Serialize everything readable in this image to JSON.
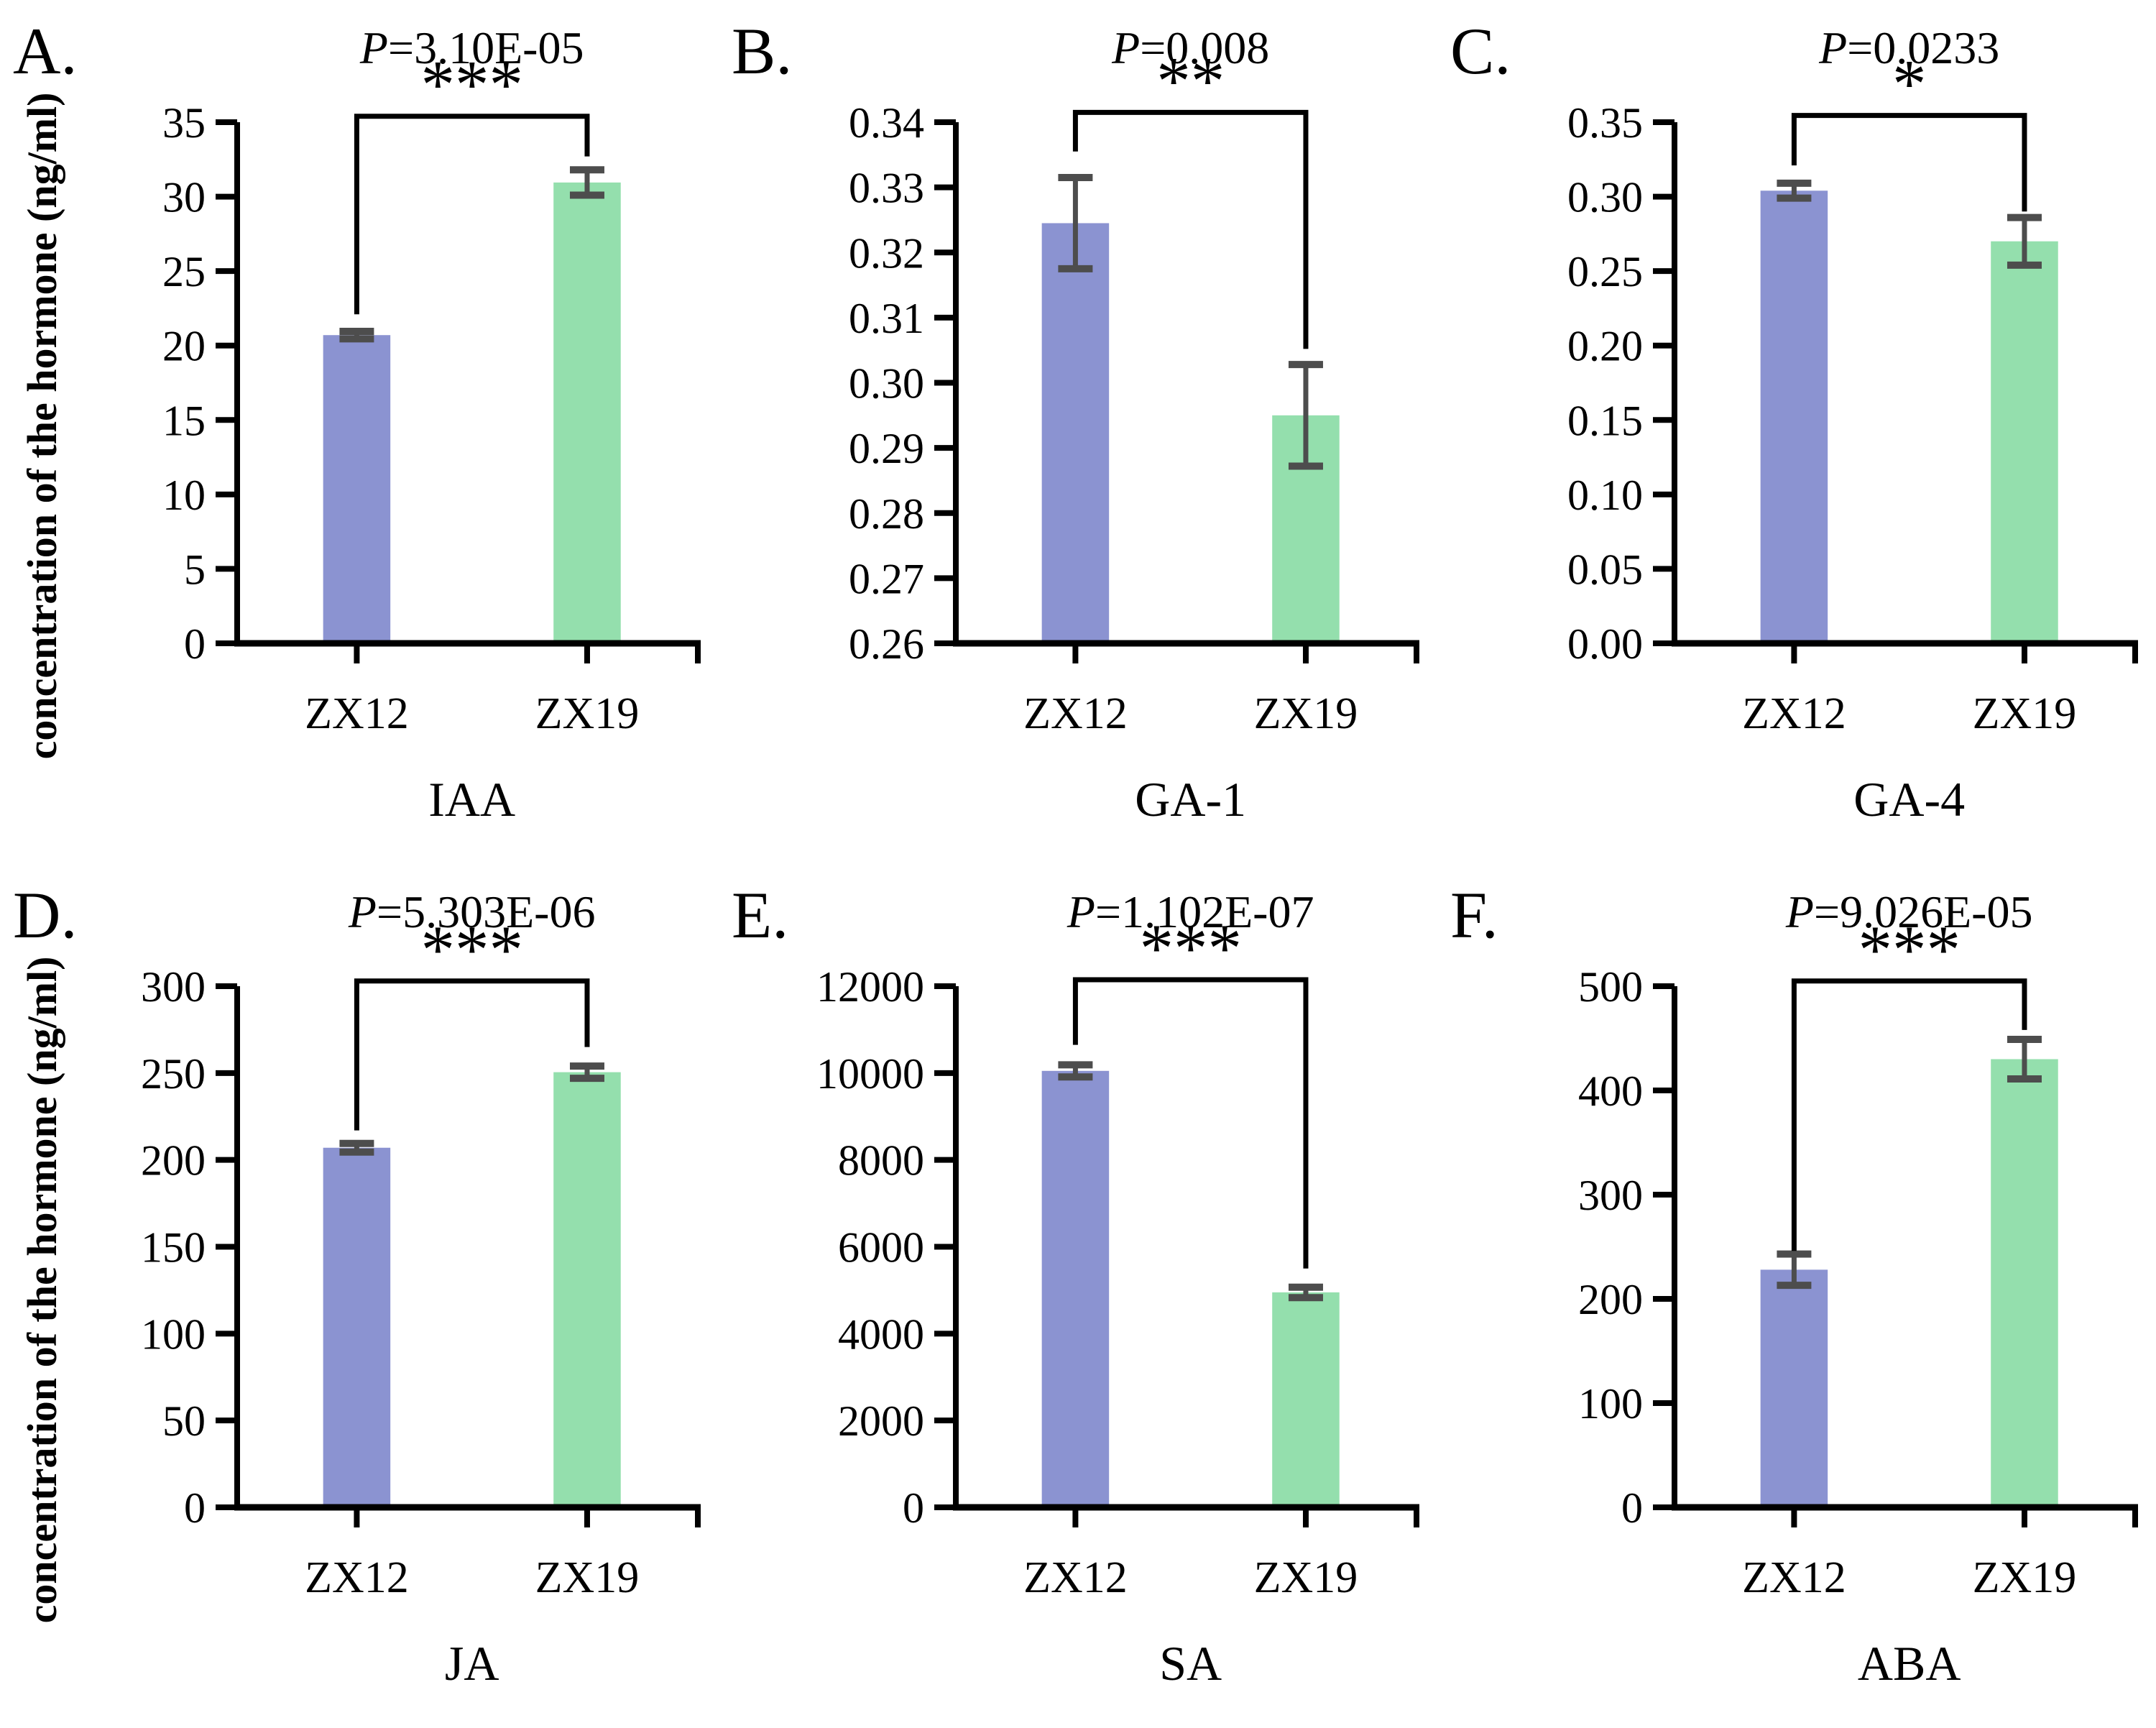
{
  "figure": {
    "ylabel": "concentration of the hormone (ng/ml)",
    "group_labels": [
      "ZX12",
      "ZX19"
    ]
  },
  "colors": {
    "bar_zx12": "#8B93D1",
    "bar_zx19": "#94DFAD",
    "error_bar": "#4d4d4d",
    "axis": "#000000",
    "bracket": "#000000"
  },
  "chart_data": [
    {
      "type": "bar",
      "panel_letter": "A.",
      "title": "P=3.10E-05",
      "stars": "***",
      "hormone": "IAA",
      "categories": [
        "ZX12",
        "ZX19"
      ],
      "values": [
        20.7,
        30.95
      ],
      "errors": [
        0.25,
        0.85
      ],
      "ylim": [
        0,
        35
      ],
      "yticks": [
        "0",
        "5",
        "10",
        "15",
        "20",
        "25",
        "30",
        "35"
      ],
      "bracket": {
        "top": 35.4,
        "left_end": 22.1,
        "right_end": 32.7
      },
      "show_ylabel": true,
      "grid": false,
      "legend": "none"
    },
    {
      "type": "bar",
      "panel_letter": "B.",
      "title": "P=0.008",
      "stars": "**",
      "hormone": "GA-1",
      "categories": [
        "ZX12",
        "ZX19"
      ],
      "values": [
        0.3245,
        0.295
      ],
      "errors": [
        0.007,
        0.0078
      ],
      "ylim": [
        0.26,
        0.34
      ],
      "yticks": [
        "0.26",
        "0.27",
        "0.28",
        "0.29",
        "0.30",
        "0.31",
        "0.32",
        "0.33",
        "0.34"
      ],
      "bracket": {
        "top": 0.3415,
        "left_end": 0.3355,
        "right_end": 0.3052
      },
      "show_ylabel": false,
      "grid": false,
      "legend": "none"
    },
    {
      "type": "bar",
      "panel_letter": "C.",
      "title": "P=0.0233",
      "stars": "*",
      "hormone": "GA-4",
      "categories": [
        "ZX12",
        "ZX19"
      ],
      "values": [
        0.304,
        0.27
      ],
      "errors": [
        0.005,
        0.016
      ],
      "ylim": [
        0,
        0.35
      ],
      "yticks": [
        "0.00",
        "0.05",
        "0.10",
        "0.15",
        "0.20",
        "0.25",
        "0.30",
        "0.35"
      ],
      "bracket": {
        "top": 0.3545,
        "left_end": 0.321,
        "right_end": 0.29
      },
      "show_ylabel": false,
      "grid": false,
      "legend": "none"
    },
    {
      "type": "bar",
      "panel_letter": "D.",
      "title": "P=5.303E-06",
      "stars": "***",
      "hormone": "JA",
      "categories": [
        "ZX12",
        "ZX19"
      ],
      "values": [
        207,
        250.5
      ],
      "errors": [
        2.5,
        3.5
      ],
      "ylim": [
        0,
        300
      ],
      "yticks": [
        "0",
        "50",
        "100",
        "150",
        "200",
        "250",
        "300"
      ],
      "bracket": {
        "top": 303,
        "left_end": 217,
        "right_end": 265
      },
      "show_ylabel": true,
      "grid": false,
      "legend": "none"
    },
    {
      "type": "bar",
      "panel_letter": "E.",
      "title": "P=1.102E-07",
      "stars": "***",
      "hormone": "SA",
      "categories": [
        "ZX12",
        "ZX19"
      ],
      "values": [
        10050,
        4950
      ],
      "errors": [
        140,
        120
      ],
      "ylim": [
        0,
        12000
      ],
      "yticks": [
        "0",
        "2000",
        "4000",
        "6000",
        "8000",
        "10000",
        "12000"
      ],
      "bracket": {
        "top": 12150,
        "left_end": 10650,
        "right_end": 5500
      },
      "show_ylabel": false,
      "grid": false,
      "legend": "none"
    },
    {
      "type": "bar",
      "panel_letter": "F.",
      "title": "P=9.026E-05",
      "stars": "***",
      "hormone": "ABA",
      "categories": [
        "ZX12",
        "ZX19"
      ],
      "values": [
        228,
        430
      ],
      "errors": [
        15,
        19
      ],
      "ylim": [
        0,
        500
      ],
      "yticks": [
        "0",
        "100",
        "200",
        "300",
        "400",
        "500"
      ],
      "bracket": {
        "top": 505,
        "left_end": 246,
        "right_end": 458
      },
      "show_ylabel": false,
      "grid": false,
      "legend": "none"
    }
  ]
}
